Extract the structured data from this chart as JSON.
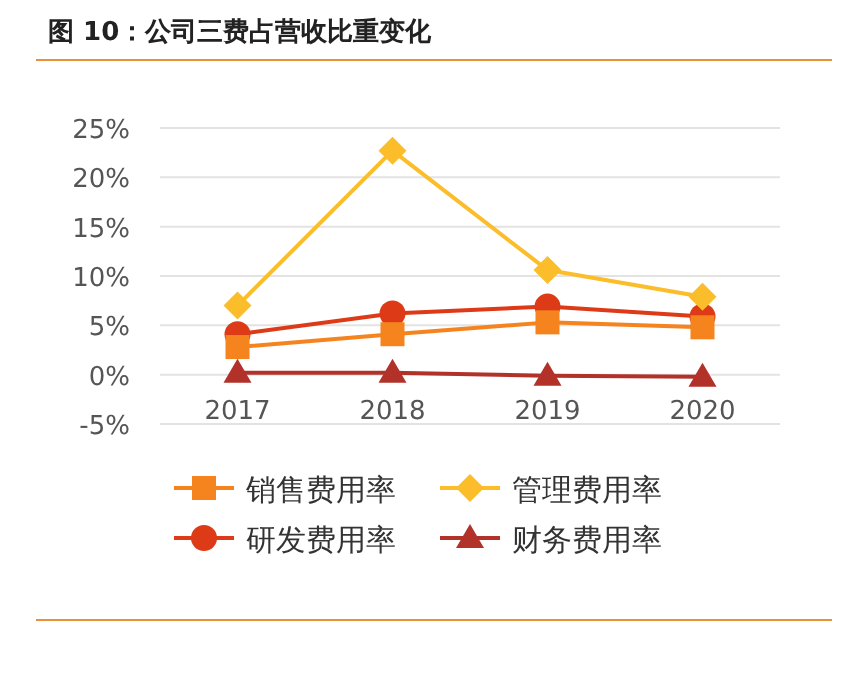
{
  "chart_data": {
    "type": "line",
    "title": "图 10：公司三费占营收比重变化",
    "categories": [
      "2017",
      "2018",
      "2019",
      "2020"
    ],
    "series": [
      {
        "name": "销售费用率",
        "color": "#f5841f",
        "marker": "square",
        "values": [
          2.8,
          4.1,
          5.3,
          4.8
        ]
      },
      {
        "name": "管理费用率",
        "color": "#fbbd2a",
        "marker": "diamond",
        "values": [
          7.0,
          22.7,
          10.6,
          7.9
        ]
      },
      {
        "name": "研发费用率",
        "color": "#dd3a17",
        "marker": "circle",
        "values": [
          4.1,
          6.2,
          6.9,
          5.9
        ]
      },
      {
        "name": "财务费用率",
        "color": "#b2322a",
        "marker": "triangle",
        "values": [
          0.2,
          0.2,
          -0.1,
          -0.2
        ]
      }
    ],
    "ylim": [
      -5,
      25
    ],
    "yticks": [
      {
        "value": -5,
        "label": "-5%"
      },
      {
        "value": 0,
        "label": "0%"
      },
      {
        "value": 5,
        "label": "5%"
      },
      {
        "value": 10,
        "label": "10%"
      },
      {
        "value": 15,
        "label": "15%"
      },
      {
        "value": 20,
        "label": "20%"
      },
      {
        "value": 25,
        "label": "25%"
      }
    ],
    "grid": "y",
    "legend": "bottom",
    "line_style": "solid"
  }
}
